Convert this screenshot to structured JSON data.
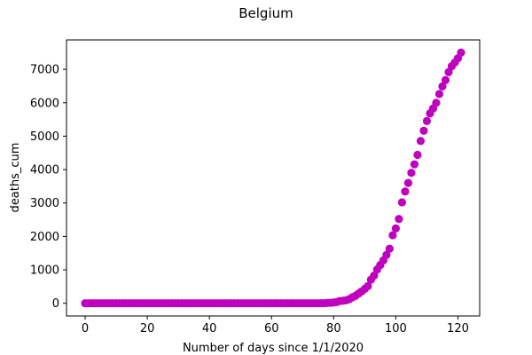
{
  "chart_data": {
    "type": "scatter",
    "title": "Belgium",
    "xlabel": "Number of days since 1/1/2020",
    "ylabel": "deaths_cum",
    "xlim": [
      -6,
      127
    ],
    "ylim": [
      -380,
      7880
    ],
    "x_ticks": [
      0,
      20,
      40,
      60,
      80,
      100,
      120
    ],
    "y_ticks": [
      0,
      1000,
      2000,
      3000,
      4000,
      5000,
      6000,
      7000
    ],
    "grid": false,
    "legend": "none",
    "marker_color": "#bf00bf",
    "series": [
      {
        "x": [
          0,
          1,
          2,
          3,
          4,
          5,
          6,
          7,
          8,
          9,
          10,
          11,
          12,
          13,
          14,
          15,
          16,
          17,
          18,
          19,
          20,
          21,
          22,
          23,
          24,
          25,
          26,
          27,
          28,
          29,
          30,
          31,
          32,
          33,
          34,
          35,
          36,
          37,
          38,
          39,
          40,
          41,
          42,
          43,
          44,
          45,
          46,
          47,
          48,
          49,
          50,
          51,
          52,
          53,
          54,
          55,
          56,
          57,
          58,
          59,
          60,
          61,
          62,
          63,
          64,
          65,
          66,
          67,
          68,
          69,
          70,
          71,
          72,
          73,
          74,
          75,
          76,
          77,
          78,
          79,
          80,
          81,
          82,
          83,
          84,
          85,
          86,
          87,
          88,
          89,
          90,
          91,
          92,
          93,
          94,
          95,
          96,
          97,
          98,
          99,
          100,
          101,
          102,
          103,
          104,
          105,
          106,
          107,
          108,
          109,
          110,
          111,
          112,
          113,
          114,
          115,
          116,
          117,
          118,
          119,
          120,
          121
        ],
        "y": [
          0,
          0,
          0,
          0,
          0,
          0,
          0,
          0,
          0,
          0,
          0,
          0,
          0,
          0,
          0,
          0,
          0,
          0,
          0,
          0,
          0,
          0,
          0,
          0,
          0,
          0,
          0,
          0,
          0,
          0,
          0,
          0,
          0,
          0,
          0,
          0,
          0,
          0,
          0,
          0,
          0,
          0,
          0,
          0,
          0,
          0,
          0,
          0,
          0,
          0,
          0,
          0,
          0,
          0,
          0,
          0,
          0,
          0,
          0,
          0,
          0,
          0,
          0,
          0,
          0,
          0,
          0,
          0,
          0,
          0,
          0,
          0,
          0,
          0,
          0,
          0,
          3,
          4,
          10,
          14,
          21,
          37,
          67,
          75,
          88,
          122,
          178,
          220,
          289,
          353,
          431,
          513,
          705,
          828,
          1011,
          1143,
          1283,
          1447,
          1632,
          2035,
          2240,
          2523,
          3019,
          3346,
          3600,
          3903,
          4157,
          4440,
          4857,
          5163,
          5453,
          5683,
          5828,
          5998,
          6262,
          6490,
          6679,
          6917,
          7094,
          7207,
          7331,
          7501
        ]
      }
    ]
  }
}
